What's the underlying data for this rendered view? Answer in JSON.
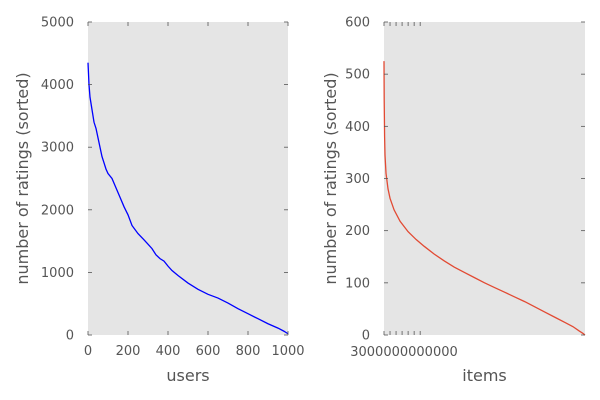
{
  "chart_data": [
    {
      "type": "line",
      "xlabel": "users",
      "ylabel": "number of ratings (sorted)",
      "xlim": [
        0,
        1000
      ],
      "ylim": [
        0,
        5000
      ],
      "xticks": [
        0,
        200,
        400,
        600,
        800,
        1000
      ],
      "yticks": [
        0,
        1000,
        2000,
        3000,
        4000,
        5000
      ],
      "grid": false,
      "colors": {
        "line": "#0000ff",
        "background": "#e5e5e5"
      },
      "series": [
        {
          "x": [
            0,
            5,
            10,
            20,
            30,
            40,
            50,
            60,
            70,
            80,
            90,
            100,
            120,
            140,
            160,
            180,
            200,
            220,
            250,
            280,
            300,
            320,
            340,
            360,
            380,
            400,
            420,
            450,
            500,
            550,
            600,
            650,
            700,
            750,
            800,
            850,
            900,
            950,
            980,
            1000
          ],
          "y": [
            4350,
            4000,
            3800,
            3600,
            3400,
            3300,
            3150,
            3000,
            2850,
            2750,
            2650,
            2580,
            2500,
            2350,
            2200,
            2050,
            1920,
            1750,
            1620,
            1520,
            1450,
            1380,
            1280,
            1220,
            1180,
            1100,
            1030,
            950,
            830,
            730,
            650,
            590,
            510,
            420,
            340,
            260,
            180,
            110,
            60,
            20
          ]
        }
      ]
    },
    {
      "type": "line",
      "xlabel": "items",
      "ylabel": "number of ratings (sorted)",
      "xlim": [
        0,
        10000
      ],
      "ylim": [
        0,
        600
      ],
      "xticks": [
        0,
        300,
        600,
        900,
        1200,
        1500,
        1800
      ],
      "yticks": [
        0,
        100,
        200,
        300,
        400,
        500,
        600
      ],
      "xtick_labels_visible": "3000000000000",
      "grid": false,
      "colors": {
        "line": "#e24a33",
        "background": "#e5e5e5"
      },
      "series": [
        {
          "x": [
            0,
            10,
            30,
            50,
            100,
            200,
            300,
            500,
            800,
            1200,
            1600,
            2000,
            2500,
            3000,
            3500,
            4000,
            4500,
            5000,
            5500,
            6000,
            6500,
            7000,
            7500,
            8000,
            8500,
            9000,
            9400,
            9700,
            9900,
            10000
          ],
          "y": [
            525,
            450,
            380,
            345,
            310,
            280,
            262,
            240,
            218,
            198,
            183,
            170,
            155,
            142,
            130,
            120,
            110,
            100,
            91,
            82,
            73,
            64,
            54,
            44,
            34,
            24,
            16,
            8,
            3,
            0
          ]
        }
      ]
    }
  ]
}
